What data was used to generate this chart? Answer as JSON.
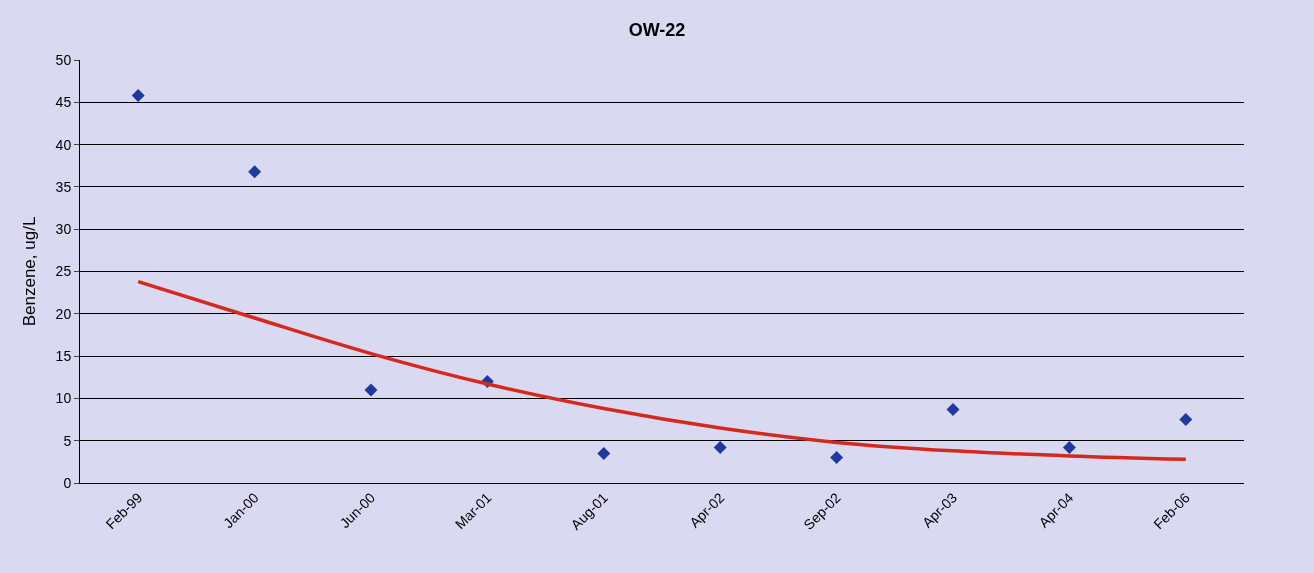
{
  "chart_data": {
    "type": "scatter",
    "title": "OW-22",
    "ylabel": "Benzene, ug/L",
    "categories": [
      "Feb-99",
      "Jan-00",
      "Jun-00",
      "Mar-01",
      "Aug-01",
      "Apr-02",
      "Sep-02",
      "Apr-03",
      "Apr-04",
      "Feb-06"
    ],
    "series": [
      {
        "color": "#1f3a9c",
        "marker": "diamond",
        "values": [
          45.8,
          36.8,
          11.0,
          12.0,
          3.5,
          4.2,
          3.0,
          8.7,
          4.2,
          7.5
        ]
      },
      {
        "type": "line",
        "color": "#d42a1e",
        "marker": "none",
        "line_style": "solid",
        "values": [
          23.8,
          19.5,
          15.3,
          11.7,
          8.8,
          6.5,
          4.8,
          3.8,
          3.2,
          2.8
        ]
      }
    ],
    "ylim": [
      0,
      50
    ],
    "yticks": [
      0,
      5,
      10,
      15,
      20,
      25,
      30,
      35,
      40,
      45,
      50
    ],
    "grid": "y",
    "legend": false
  }
}
